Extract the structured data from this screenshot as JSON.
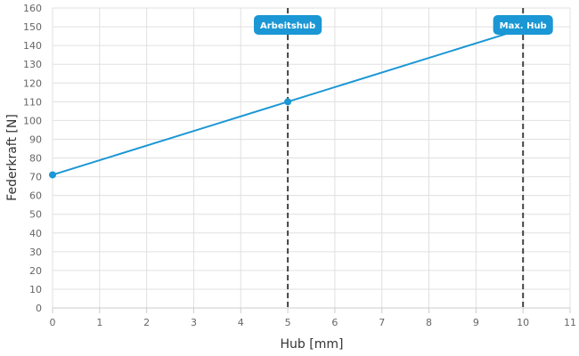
{
  "chart_data": {
    "type": "line",
    "xlabel": "Hub [mm]",
    "ylabel": "Federkraft [N]",
    "xlim": [
      0,
      11
    ],
    "ylim": [
      0,
      160
    ],
    "x_ticks": [
      0,
      1,
      2,
      3,
      4,
      5,
      6,
      7,
      8,
      9,
      10,
      11
    ],
    "y_ticks": [
      0,
      10,
      20,
      30,
      40,
      50,
      60,
      70,
      80,
      90,
      100,
      110,
      120,
      130,
      140,
      150,
      160
    ],
    "grid": true,
    "series": [
      {
        "color": "#1a97d4",
        "x": [
          0,
          5,
          10
        ],
        "y": [
          71,
          110,
          149
        ],
        "marked_points": [
          0,
          1
        ]
      }
    ],
    "reference_lines": [
      {
        "x": 5,
        "label": "Arbeitshub"
      },
      {
        "x": 10,
        "label": "Max. Hub"
      }
    ],
    "colors": {
      "line": "#1a97d4",
      "label_bg": "#1a97d4",
      "reference_line": "#444444",
      "grid": "#e0e0e0"
    }
  }
}
